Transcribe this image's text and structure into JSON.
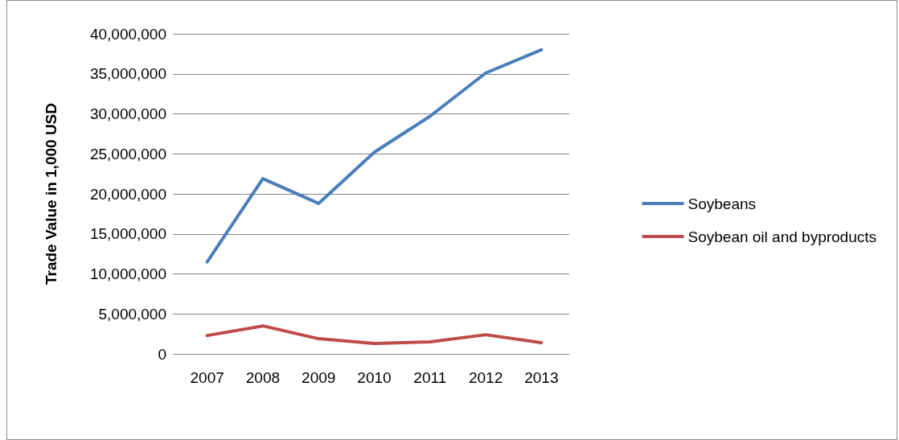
{
  "chart_data": {
    "type": "line",
    "ylabel": "Trade Value in 1,000 USD",
    "categories": [
      "2007",
      "2008",
      "2009",
      "2010",
      "2011",
      "2012",
      "2013"
    ],
    "series": [
      {
        "name": "Soybeans",
        "color": "#4a7ebb",
        "values": [
          11500000,
          21900000,
          18800000,
          25200000,
          29700000,
          35100000,
          38000000
        ]
      },
      {
        "name": "Soybean oil and byproducts",
        "color": "#be4b48",
        "values": [
          2300000,
          3500000,
          1900000,
          1300000,
          1500000,
          2400000,
          1400000
        ]
      }
    ],
    "ylim": [
      0,
      40000000
    ],
    "yticks": [
      0,
      {
        "value": 5000000,
        "label": "5,000,000"
      },
      {
        "value": 10000000,
        "label": "10,000,000"
      },
      {
        "value": 15000000,
        "label": "15,000,000"
      },
      {
        "value": 20000000,
        "label": "20,000,000"
      },
      {
        "value": 25000000,
        "label": "25,000,000"
      },
      {
        "value": 30000000,
        "label": "30,000,000"
      },
      {
        "value": 35000000,
        "label": "35,000,000"
      },
      {
        "value": 40000000,
        "label": "40,000,000"
      }
    ],
    "grid": "y",
    "legend": "right",
    "marker": "none",
    "line_style": "solid"
  }
}
